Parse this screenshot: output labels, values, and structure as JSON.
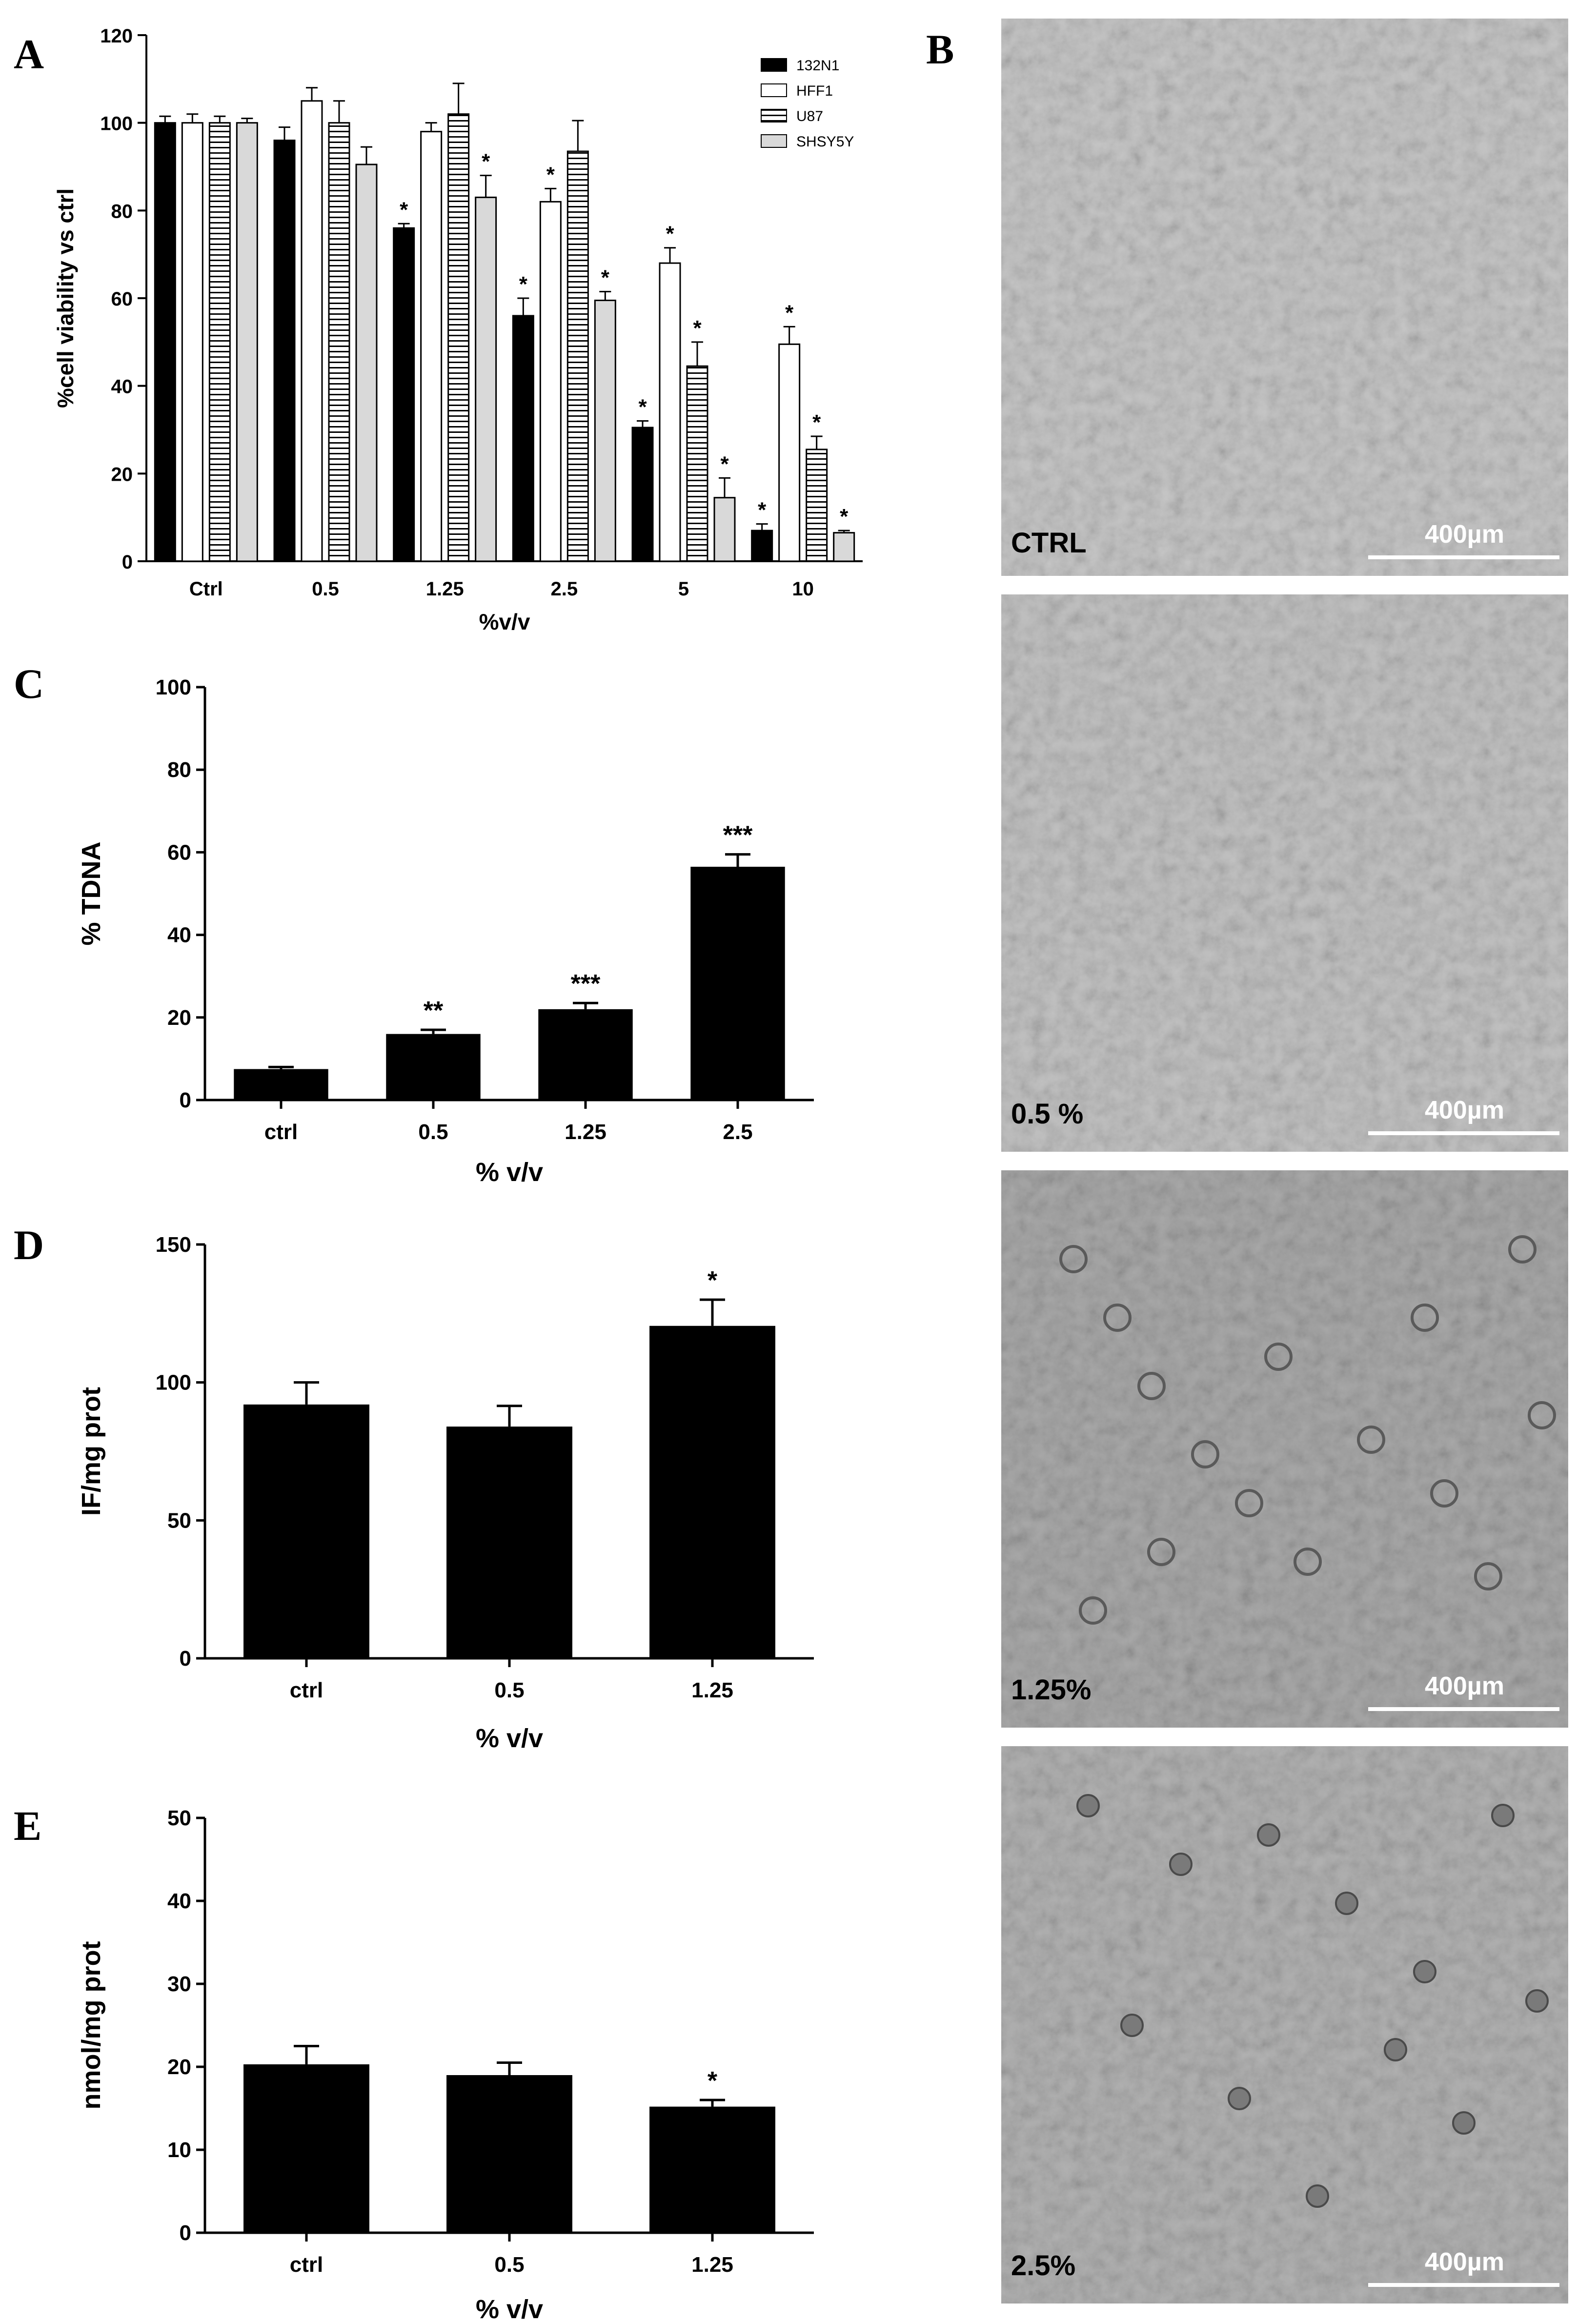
{
  "panels": {
    "A": "A",
    "B": "B",
    "C": "C",
    "D": "D",
    "E": "E"
  },
  "chart_data": [
    {
      "id": "A",
      "type": "bar",
      "title": "",
      "xlabel": "%v/v",
      "ylabel": "%cell viability vs ctrl",
      "ylim": [
        0,
        120
      ],
      "yticks": [
        0,
        20,
        40,
        60,
        80,
        100,
        120
      ],
      "categories": [
        "Ctrl",
        "0.5",
        "1.25",
        "2.5",
        "5",
        "10"
      ],
      "legend_position": "top-right",
      "series": [
        {
          "name": "132N1",
          "color": "#000000",
          "pattern": "solid",
          "values": [
            100,
            96,
            76,
            56,
            30.5,
            7
          ],
          "errors": [
            1.5,
            3,
            1,
            4,
            1.5,
            1.5
          ],
          "marks": [
            "",
            "",
            "*",
            "*",
            "*",
            "*"
          ]
        },
        {
          "name": "HFF1",
          "color": "#ffffff",
          "pattern": "open",
          "values": [
            100,
            105,
            98,
            82,
            68,
            49.5
          ],
          "errors": [
            2,
            3,
            2,
            3,
            3.5,
            4
          ],
          "marks": [
            "",
            "",
            "",
            "*",
            "*",
            "*"
          ]
        },
        {
          "name": "U87",
          "color": "#ffffff",
          "pattern": "horizontal-lines",
          "values": [
            100,
            100,
            102,
            93.5,
            44.5,
            25.5
          ],
          "errors": [
            1.5,
            5,
            7,
            7,
            5.5,
            3
          ],
          "marks": [
            "",
            "",
            "",
            "",
            "*",
            "*"
          ]
        },
        {
          "name": "SHSY5Y",
          "color": "#d9d9d9",
          "pattern": "solid",
          "values": [
            100,
            90.5,
            83,
            59.5,
            14.5,
            6.5
          ],
          "errors": [
            1,
            4,
            5,
            2,
            4.5,
            0.5
          ],
          "marks": [
            "",
            "",
            "*",
            "*",
            "*",
            "*"
          ]
        }
      ]
    },
    {
      "id": "C",
      "type": "bar",
      "title": "",
      "xlabel": "% v/v",
      "ylabel": "% TDNA",
      "ylim": [
        0,
        100
      ],
      "yticks": [
        0,
        20,
        40,
        60,
        80,
        100
      ],
      "categories": [
        "ctrl",
        "0.5",
        "1.25",
        "2.5"
      ],
      "series": [
        {
          "name": "",
          "color": "#000000",
          "values": [
            7.5,
            16,
            22,
            56.5
          ],
          "errors": [
            0.5,
            1,
            1.5,
            3
          ],
          "marks": [
            "",
            "**",
            "***",
            "***"
          ]
        }
      ]
    },
    {
      "id": "D",
      "type": "bar",
      "title": "",
      "xlabel": "% v/v",
      "ylabel": "IF/mg prot",
      "ylim": [
        0,
        150
      ],
      "yticks": [
        0,
        50,
        100,
        150
      ],
      "categories": [
        "ctrl",
        "0.5",
        "1.25"
      ],
      "series": [
        {
          "name": "",
          "color": "#000000",
          "values": [
            92,
            84,
            120.5
          ],
          "errors": [
            8,
            7.5,
            9.5
          ],
          "marks": [
            "",
            "",
            "*"
          ]
        }
      ]
    },
    {
      "id": "E",
      "type": "bar",
      "title": "",
      "xlabel": "% v/v",
      "ylabel": "nmol/mg prot",
      "ylim": [
        0,
        50
      ],
      "yticks": [
        0,
        10,
        20,
        30,
        40,
        50
      ],
      "categories": [
        "ctrl",
        "0.5",
        "1.25"
      ],
      "series": [
        {
          "name": "",
          "color": "#000000",
          "values": [
            20.3,
            19,
            15.2
          ],
          "errors": [
            2.2,
            1.5,
            0.8
          ],
          "marks": [
            "",
            "",
            "*"
          ]
        }
      ]
    }
  ],
  "micrographs": [
    {
      "label": "CTRL",
      "scale": "400µm",
      "tone": "#c6c6c6"
    },
    {
      "label": "0.5 %",
      "scale": "400µm",
      "tone": "#c2c2c2"
    },
    {
      "label": "1.25%",
      "scale": "400µm",
      "tone": "#a9a9a9"
    },
    {
      "label": "2.5%",
      "scale": "400µm",
      "tone": "#b2b2b2"
    }
  ]
}
